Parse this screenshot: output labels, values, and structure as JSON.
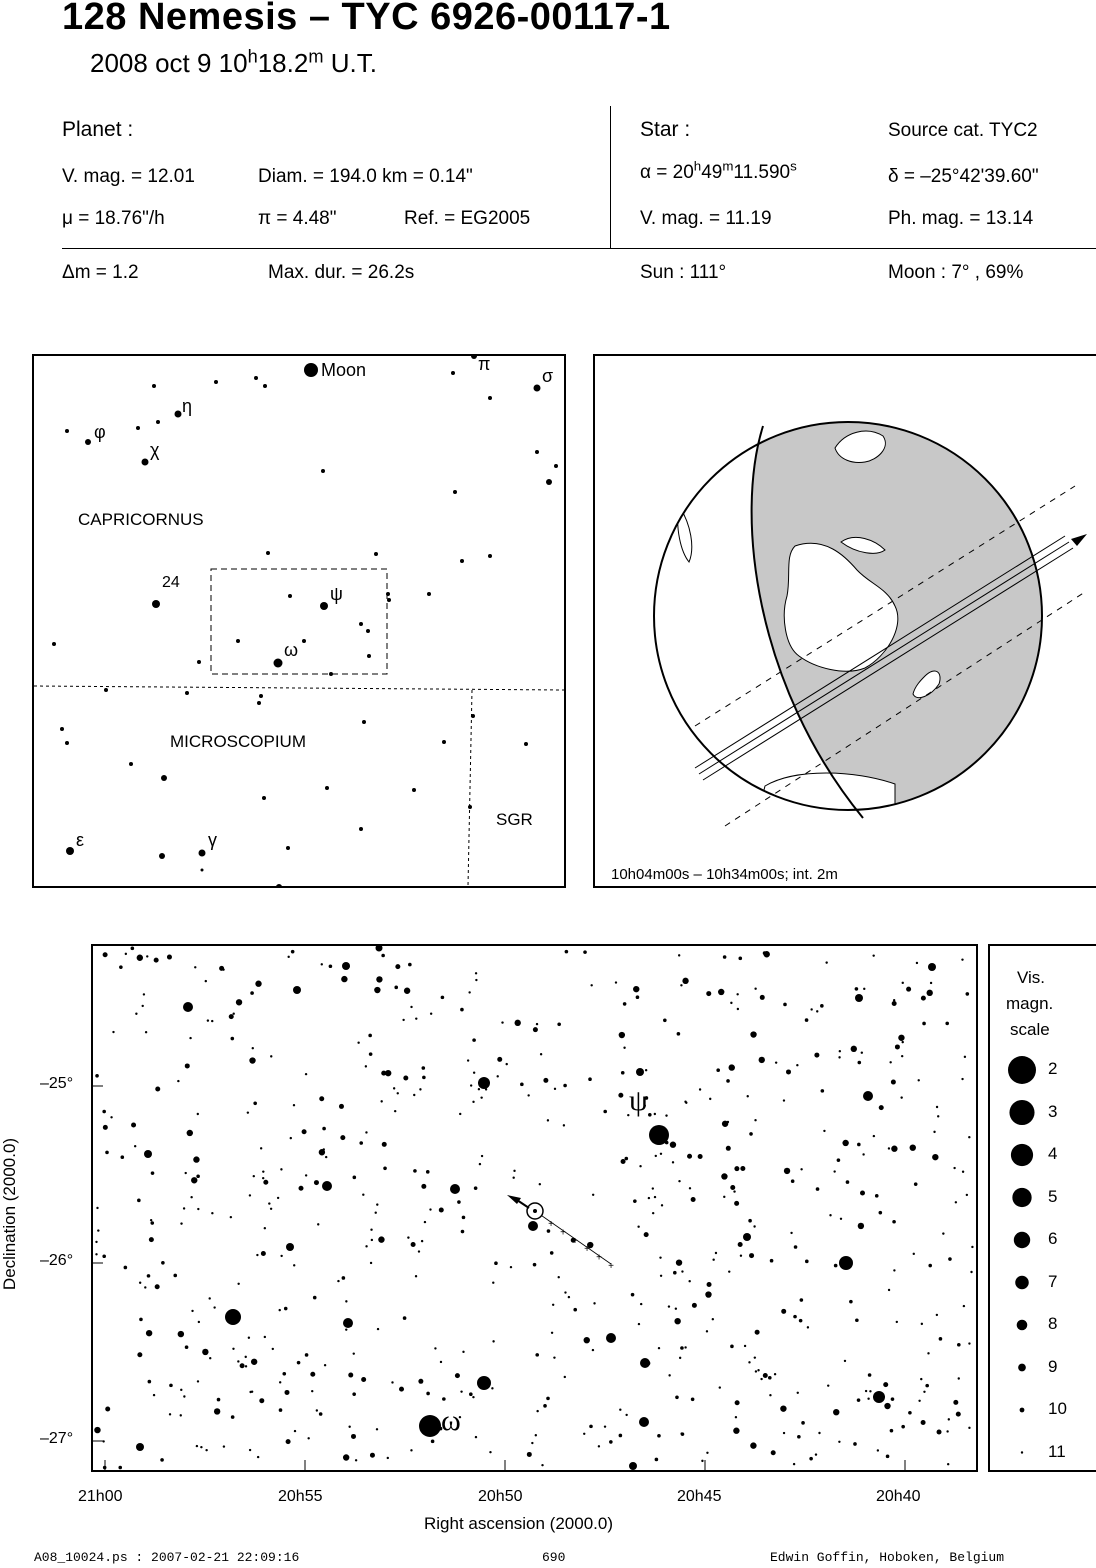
{
  "header": {
    "title": "128 Nemesis  –  TYC 6926-00117-1",
    "date_prefix": "2008 oct  9  10",
    "time_h": "h",
    "time_min": "18.2",
    "time_m": "m",
    "time_suffix": " U.T."
  },
  "planet": {
    "heading": "Planet :",
    "vmag": "V. mag. = 12.01",
    "diam": "Diam. = 194.0 km = 0.14\"",
    "mu": "μ =  18.76\"/h",
    "pi": "π =  4.48\"",
    "ref": "Ref. = EG2005"
  },
  "star": {
    "heading": "Star :",
    "source": "Source cat.  TYC2",
    "alpha_prefix": "α = 20",
    "alpha_h": "h",
    "alpha_min": "49",
    "alpha_m": "m",
    "alpha_sec": "11.590",
    "alpha_s": "s",
    "delta": "δ = –25°42'39.60\"",
    "vmag": "V. mag. = 11.19",
    "phmag": "Ph. mag. = 13.14"
  },
  "event": {
    "dm": "Δm = 1.2",
    "maxdur": "Max. dur. = 26.2s",
    "sun": "Sun : 111°",
    "moon": "Moon :   7° , 69%"
  },
  "finder": {
    "moon_label": "Moon",
    "constellation_1": "CAPRICORNUS",
    "constellation_2": "MICROSCOPIUM",
    "constellation_3": "SGR",
    "labels": {
      "pi": "π",
      "sigma": "σ",
      "eta": "η",
      "phi": "φ",
      "chi": "χ",
      "n24": "24",
      "psi": "ψ",
      "omega": "ω",
      "epsilon": "ε",
      "gamma": "γ"
    }
  },
  "globe": {
    "caption": "10h04m00s – 10h34m00s; int.  2m"
  },
  "starchart": {
    "ylabel": "Declination (2000.0)",
    "xlabel": "Right ascension (2000.0)",
    "yticks": [
      "–25°",
      "–26°",
      "–27°"
    ],
    "xticks": [
      "21h00",
      "20h55",
      "20h50",
      "20h45",
      "20h40"
    ],
    "psi_label": "ψ",
    "omega_label": "ω"
  },
  "legend": {
    "title_1": "Vis.",
    "title_2": "magn.",
    "title_3": "scale",
    "mags": [
      "2",
      "3",
      "4",
      "5",
      "6",
      "7",
      "8",
      "9",
      "10",
      "11"
    ]
  },
  "footer": {
    "file": "A08_10024.ps : 2007-02-21 22:09:16",
    "page": "690",
    "author": "Edwin Goffin, Hoboken, Belgium"
  }
}
